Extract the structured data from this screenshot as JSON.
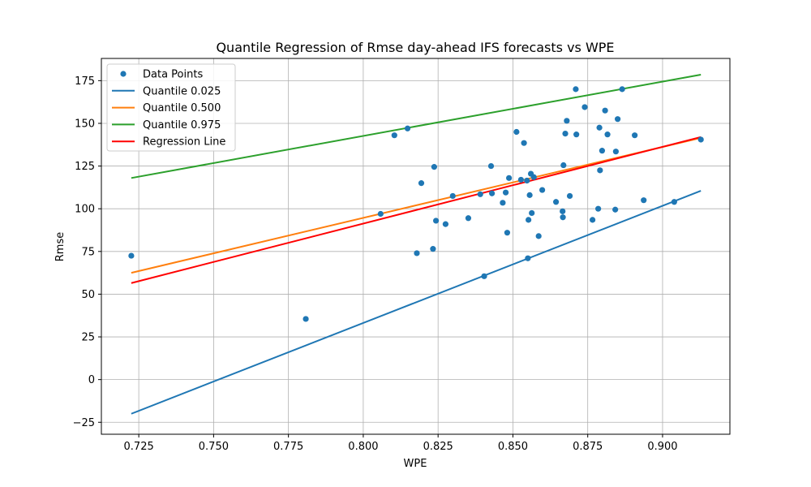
{
  "chart_data": {
    "type": "scatter",
    "title": "Quantile Regression of Rmse day-ahead IFS forecasts vs WPE",
    "xlabel": "WPE",
    "ylabel": "Rmse",
    "xlim": [
      0.7125,
      0.9225
    ],
    "ylim": [
      -32,
      188
    ],
    "xticks": [
      0.725,
      0.75,
      0.775,
      0.8,
      0.825,
      0.85,
      0.875,
      0.9
    ],
    "xtick_labels": [
      "0.725",
      "0.750",
      "0.775",
      "0.800",
      "0.825",
      "0.850",
      "0.875",
      "0.900"
    ],
    "yticks": [
      -25,
      0,
      25,
      50,
      75,
      100,
      125,
      150,
      175
    ],
    "ytick_labels": [
      "−25",
      "0",
      "25",
      "50",
      "75",
      "100",
      "125",
      "150",
      "175"
    ],
    "grid": true,
    "legend_position": "top-left",
    "points": {
      "name": "Data Points",
      "color": "#1f77b4",
      "x": [
        0.7225,
        0.7808,
        0.8058,
        0.8104,
        0.8148,
        0.8179,
        0.8194,
        0.8233,
        0.8237,
        0.8243,
        0.8275,
        0.8299,
        0.8351,
        0.8391,
        0.8404,
        0.8427,
        0.843,
        0.8466,
        0.8476,
        0.8481,
        0.8487,
        0.8512,
        0.8527,
        0.8537,
        0.8547,
        0.855,
        0.8552,
        0.8556,
        0.856,
        0.8563,
        0.857,
        0.8586,
        0.8598,
        0.8644,
        0.8666,
        0.8667,
        0.8669,
        0.8675,
        0.868,
        0.869,
        0.871,
        0.8712,
        0.874,
        0.8766,
        0.8785,
        0.8789,
        0.8791,
        0.8798,
        0.8808,
        0.8816,
        0.8842,
        0.8844,
        0.885,
        0.8865,
        0.8907,
        0.8937,
        0.9039,
        0.9128
      ],
      "y": [
        72.5,
        35.5,
        97,
        143,
        147,
        74,
        115,
        76.5,
        124.5,
        93,
        91,
        107.5,
        94.5,
        108.5,
        60.5,
        125,
        109,
        103.5,
        109.5,
        86,
        118,
        145,
        117,
        138.5,
        116.5,
        71,
        93.5,
        108,
        120.5,
        97.5,
        118.5,
        84,
        111,
        104,
        98.5,
        95,
        125.5,
        144,
        151.5,
        107.5,
        170,
        143.5,
        159.5,
        93.5,
        100,
        147.5,
        122.5,
        134,
        157.5,
        143.5,
        99.5,
        133.5,
        152.5,
        170,
        143,
        105,
        104,
        140.5
      ]
    },
    "lines": [
      {
        "name": "Quantile 0.025",
        "color": "#1f77b4",
        "x": [
          0.7225,
          0.9128
        ],
        "y": [
          -20,
          110.5
        ]
      },
      {
        "name": "Quantile 0.500",
        "color": "#ff7f0e",
        "x": [
          0.7225,
          0.9128
        ],
        "y": [
          62.5,
          141.5
        ]
      },
      {
        "name": "Quantile 0.975",
        "color": "#2ca02c",
        "x": [
          0.7225,
          0.9128
        ],
        "y": [
          118,
          178.5
        ]
      },
      {
        "name": "Regression Line",
        "color": "#ff0000",
        "x": [
          0.7225,
          0.9128
        ],
        "y": [
          56.5,
          142
        ]
      }
    ]
  }
}
